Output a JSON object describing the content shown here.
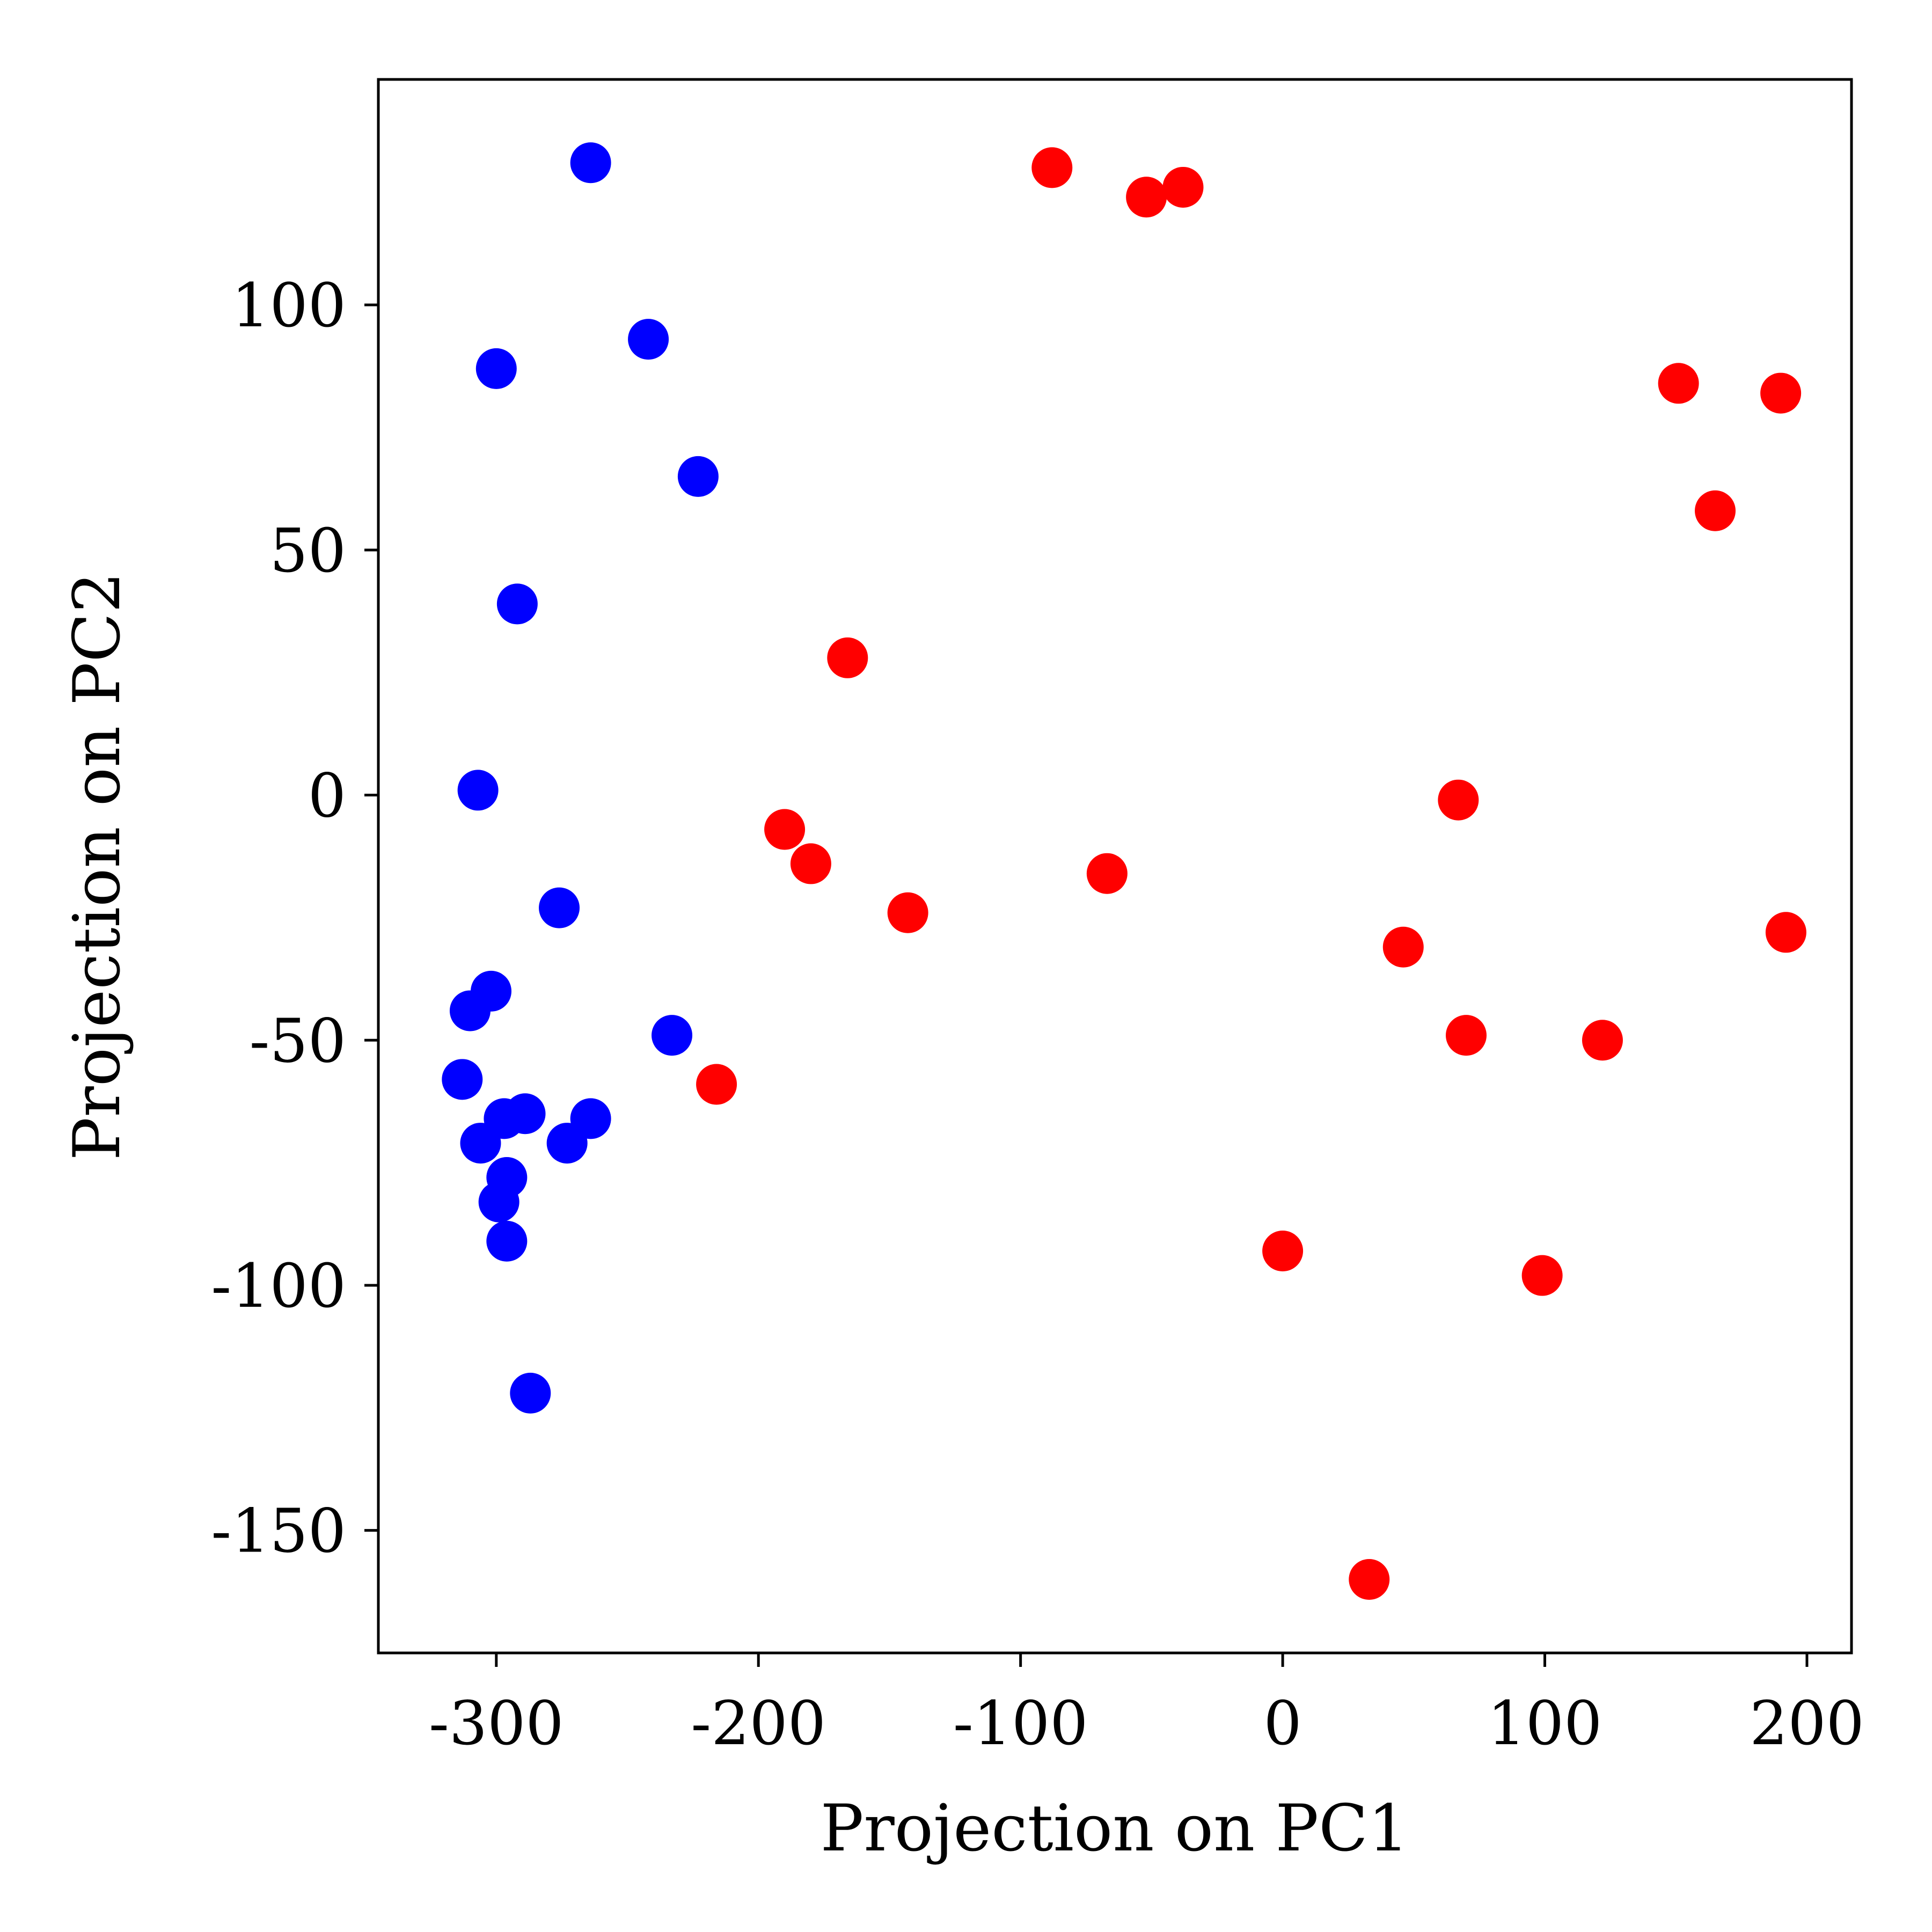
{
  "chart_data": {
    "type": "scatter",
    "title": "",
    "xlabel": "Projection on PC1",
    "ylabel": "Projection on PC2",
    "xlim": [
      -345,
      217
    ],
    "ylim": [
      -175,
      146
    ],
    "xticks": [
      -300,
      -200,
      -100,
      0,
      100,
      200
    ],
    "yticks": [
      -150,
      -100,
      -50,
      0,
      50,
      100
    ],
    "xtick_labels": [
      "-300",
      "-200",
      "-100",
      "0",
      "100",
      "200"
    ],
    "ytick_labels": [
      "-150",
      "-100",
      "-50",
      "0",
      "50",
      "100"
    ],
    "grid": false,
    "legend": false,
    "series": [
      {
        "color": "#0000ff",
        "points": [
          {
            "x": -264,
            "y": 129
          },
          {
            "x": -242,
            "y": 93
          },
          {
            "x": -300,
            "y": 87
          },
          {
            "x": -223,
            "y": 65
          },
          {
            "x": -292,
            "y": 39
          },
          {
            "x": -307,
            "y": 1
          },
          {
            "x": -276,
            "y": -23
          },
          {
            "x": -302,
            "y": -40
          },
          {
            "x": -310,
            "y": -44
          },
          {
            "x": -233,
            "y": -49
          },
          {
            "x": -313,
            "y": -58
          },
          {
            "x": -289,
            "y": -65
          },
          {
            "x": -264,
            "y": -66
          },
          {
            "x": -297,
            "y": -66
          },
          {
            "x": -306,
            "y": -71
          },
          {
            "x": -273,
            "y": -71
          },
          {
            "x": -296,
            "y": -78
          },
          {
            "x": -299,
            "y": -83
          },
          {
            "x": -296,
            "y": -91
          },
          {
            "x": -287,
            "y": -122
          }
        ]
      },
      {
        "color": "#ff0000",
        "points": [
          {
            "x": -88,
            "y": 128
          },
          {
            "x": -52,
            "y": 122
          },
          {
            "x": -38,
            "y": 124
          },
          {
            "x": 151,
            "y": 84
          },
          {
            "x": 190,
            "y": 82
          },
          {
            "x": 165,
            "y": 58
          },
          {
            "x": -166,
            "y": 28
          },
          {
            "x": 67,
            "y": -1
          },
          {
            "x": -190,
            "y": -7
          },
          {
            "x": -180,
            "y": -14
          },
          {
            "x": -67,
            "y": -16
          },
          {
            "x": -143,
            "y": -24
          },
          {
            "x": 192,
            "y": -28
          },
          {
            "x": 46,
            "y": -31
          },
          {
            "x": 70,
            "y": -49
          },
          {
            "x": 122,
            "y": -50
          },
          {
            "x": -216,
            "y": -59
          },
          {
            "x": 0,
            "y": -93
          },
          {
            "x": 99,
            "y": -98
          },
          {
            "x": 33,
            "y": -160
          }
        ]
      }
    ]
  }
}
